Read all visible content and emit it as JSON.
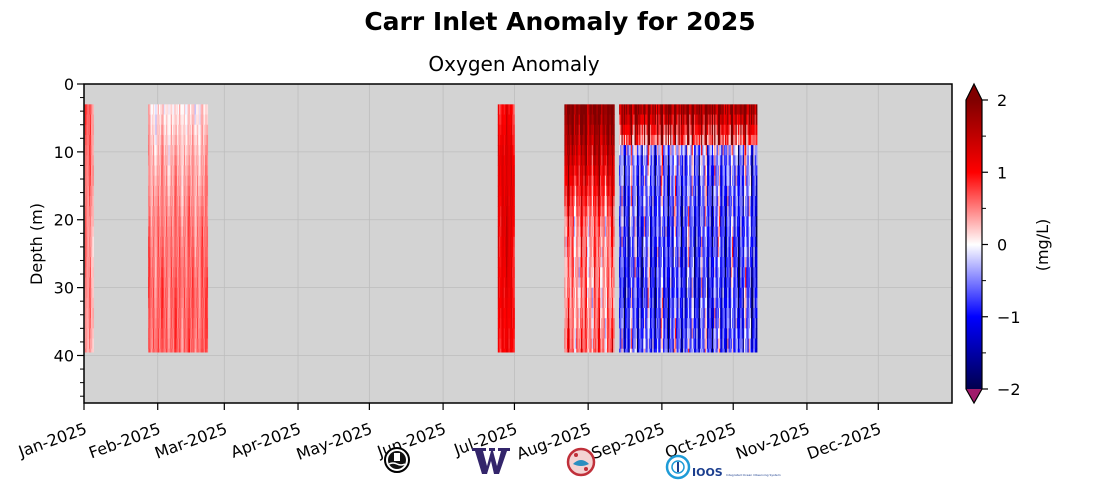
{
  "chart_data": {
    "type": "heatmap",
    "title": "Carr Inlet Anomaly for 2025",
    "subtitle": "Oxygen Anomaly",
    "xlabel": "",
    "ylabel": "Depth (m)",
    "x_range": [
      "2025-01-01",
      "2026-01-01"
    ],
    "ylim": [
      47,
      0
    ],
    "y_ticks": [
      0,
      10,
      20,
      30,
      40
    ],
    "x_ticks": [
      {
        "date": "2025-01-01",
        "label": "Jan-2025"
      },
      {
        "date": "2025-02-01",
        "label": "Feb-2025"
      },
      {
        "date": "2025-03-01",
        "label": "Mar-2025"
      },
      {
        "date": "2025-04-01",
        "label": "Apr-2025"
      },
      {
        "date": "2025-05-01",
        "label": "May-2025"
      },
      {
        "date": "2025-06-01",
        "label": "Jun-2025"
      },
      {
        "date": "2025-07-01",
        "label": "Jul-2025"
      },
      {
        "date": "2025-08-01",
        "label": "Aug-2025"
      },
      {
        "date": "2025-09-01",
        "label": "Sep-2025"
      },
      {
        "date": "2025-10-01",
        "label": "Oct-2025"
      },
      {
        "date": "2025-11-01",
        "label": "Nov-2025"
      },
      {
        "date": "2025-12-01",
        "label": "Dec-2025"
      }
    ],
    "grid": true,
    "background_color": "#d3d3d3",
    "profile_depths": [
      3,
      10,
      20,
      30,
      39.5
    ],
    "segments": [
      {
        "start": "2025-01-01",
        "end": "2025-01-05",
        "anomaly_profile": [
          0.6,
          0.5,
          0.4,
          0.4,
          0.3
        ]
      },
      {
        "start": "2025-01-28",
        "end": "2025-02-22",
        "anomaly_profile": [
          0.1,
          0.3,
          0.5,
          0.6,
          0.6
        ]
      },
      {
        "start": "2025-06-24",
        "end": "2025-07-01",
        "anomaly_profile": [
          1.0,
          1.2,
          1.2,
          1.1,
          1.0
        ]
      },
      {
        "start": "2025-07-22",
        "end": "2025-08-12",
        "anomaly_profile": [
          2.0,
          1.4,
          0.5,
          0.4,
          0.6
        ]
      },
      {
        "start": "2025-08-14",
        "end": "2025-10-11",
        "anomaly_profile": [
          1.2,
          -0.5,
          -0.7,
          -0.8,
          -0.6
        ]
      }
    ],
    "colorbar": {
      "label": "(mg/L)",
      "range": [
        -2,
        2
      ],
      "ticks": [
        {
          "v": 2,
          "label": "2"
        },
        {
          "v": 1,
          "label": "1"
        },
        {
          "v": 0,
          "label": "0"
        },
        {
          "v": -1,
          "label": "−1"
        },
        {
          "v": -2,
          "label": "−2"
        }
      ],
      "over_color": "#800000",
      "under_color": "#a01a6a"
    }
  },
  "logos": [
    "buoy-logo",
    "uw-logo",
    "nw-tribal-logo",
    "ioos-logo"
  ],
  "logo_text": {
    "uw": "W",
    "ioos": "IOOS",
    "ioos_sub": "Integrated Ocean Observing System"
  }
}
